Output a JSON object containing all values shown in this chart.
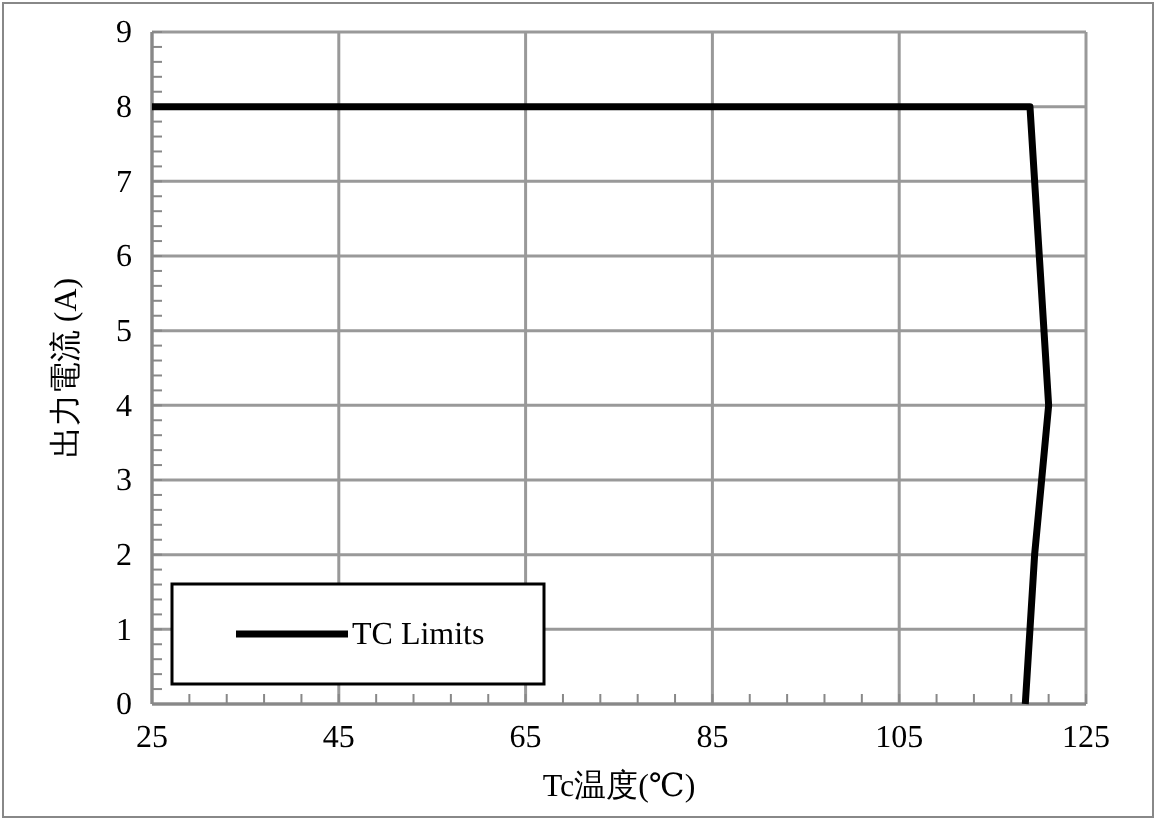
{
  "chart_data": {
    "type": "line",
    "xlabel": "Tc温度(℃)",
    "ylabel": "出力電流 (A)",
    "x": [
      25,
      119,
      120,
      121,
      119.5,
      118.5
    ],
    "series": [
      {
        "name": "TC Limits",
        "color": "#000000",
        "values": [
          8,
          8,
          6,
          4,
          2,
          0
        ]
      }
    ],
    "xlim": [
      25,
      125
    ],
    "xticks": [
      25,
      45,
      65,
      85,
      105,
      125
    ],
    "ylim": [
      0,
      9
    ],
    "yticks": [
      0,
      1,
      2,
      3,
      4,
      5,
      6,
      7,
      8,
      9
    ],
    "grid": true,
    "legend": "bottom left",
    "marker": "none",
    "line_style": "solid"
  }
}
